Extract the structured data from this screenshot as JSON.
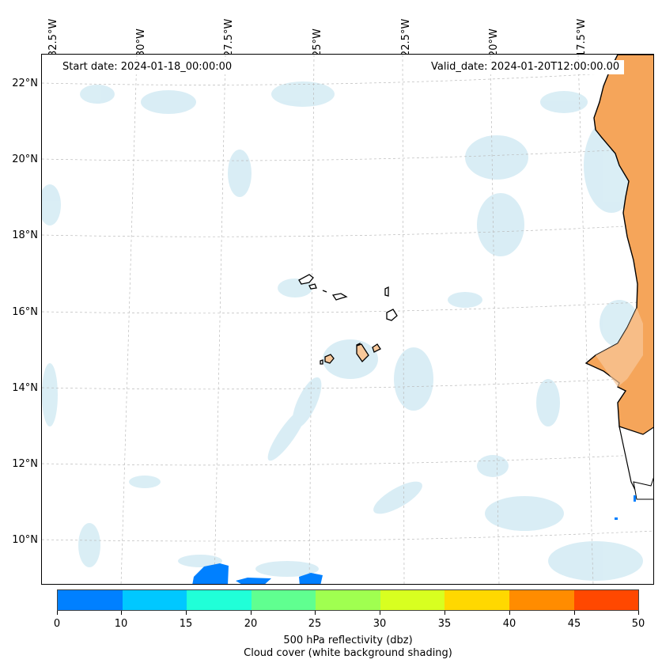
{
  "map": {
    "lon_labels": [
      "32.5°W",
      "30°W",
      "27.5°W",
      "25°W",
      "22.5°W",
      "20°W",
      "17.5°W"
    ],
    "lat_labels": [
      "22°N",
      "20°N",
      "18°N",
      "16°N",
      "14°N",
      "12°N",
      "10°N"
    ],
    "start_date": "Start date: 2024-01-18_00:00:00",
    "valid_date": "Valid_date: 2024-01-20T12:00:00.00"
  },
  "colorbar": {
    "ticks": [
      "0",
      "10",
      "15",
      "20",
      "25",
      "30",
      "35",
      "40",
      "45",
      "50"
    ],
    "colors": [
      "#0080ff",
      "#00c8ff",
      "#20ffd8",
      "#60ff90",
      "#a0ff50",
      "#d8ff20",
      "#ffd800",
      "#ff8c00",
      "#ff4800"
    ],
    "title_line1": "500 hPa reflectivity (dbz)",
    "title_line2": "Cloud cover (white background shading)"
  },
  "colors": {
    "land": "#f5a55a",
    "land_light": "#f8c89a",
    "cloud": "#cde8f2",
    "reflectivity_low": "#0080ff"
  }
}
